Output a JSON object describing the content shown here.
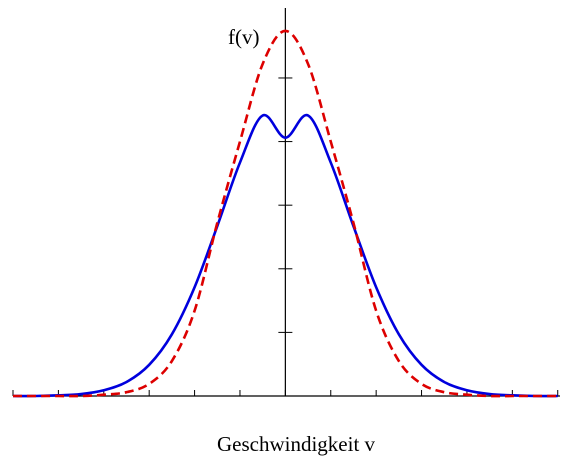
{
  "chart_data": {
    "type": "line",
    "xlabel": "Geschwindigkeit v",
    "ylabel": "f(v)",
    "x_ticks": {
      "min": -6,
      "max": 6,
      "step": 1,
      "labels_shown": false
    },
    "y_ticks": {
      "min": 0,
      "max": 5,
      "step": 1,
      "labels_shown": false
    },
    "xlim": [
      -6,
      6.05
    ],
    "ylim": [
      0,
      6.1
    ],
    "series": [
      {
        "style": "solid",
        "color": "#0000dd",
        "points": [
          [
            -6,
            0.0
          ],
          [
            -5.5,
            0.0
          ],
          [
            -5,
            0.01
          ],
          [
            -4.5,
            0.03
          ],
          [
            -4,
            0.09
          ],
          [
            -3.5,
            0.22
          ],
          [
            -3,
            0.49
          ],
          [
            -2.5,
            0.97
          ],
          [
            -2,
            1.71
          ],
          [
            -1.5,
            2.67
          ],
          [
            -1,
            3.67
          ],
          [
            -0.5,
            4.41
          ],
          [
            0,
            4.06
          ],
          [
            0.5,
            4.41
          ],
          [
            1,
            3.67
          ],
          [
            1.5,
            2.67
          ],
          [
            2,
            1.71
          ],
          [
            2.5,
            0.97
          ],
          [
            3,
            0.49
          ],
          [
            3.5,
            0.22
          ],
          [
            4,
            0.09
          ],
          [
            4.5,
            0.03
          ],
          [
            5,
            0.01
          ],
          [
            5.5,
            0.0
          ],
          [
            6,
            0.0
          ]
        ]
      },
      {
        "style": "dashed",
        "color": "#dd0000",
        "points": [
          [
            -6,
            0.0
          ],
          [
            -5,
            0.0
          ],
          [
            -4.5,
            0.0
          ],
          [
            -4,
            0.02
          ],
          [
            -3.5,
            0.06
          ],
          [
            -3,
            0.19
          ],
          [
            -2.5,
            0.55
          ],
          [
            -2,
            1.34
          ],
          [
            -1.5,
            2.72
          ],
          [
            -1,
            4.0
          ],
          [
            -0.5,
            5.22
          ],
          [
            0,
            5.74
          ],
          [
            0.5,
            5.22
          ],
          [
            1,
            4.0
          ],
          [
            1.5,
            2.72
          ],
          [
            2,
            1.34
          ],
          [
            2.5,
            0.55
          ],
          [
            3,
            0.19
          ],
          [
            3.5,
            0.06
          ],
          [
            4,
            0.02
          ],
          [
            4.5,
            0.0
          ],
          [
            5,
            0.0
          ],
          [
            6,
            0.0
          ]
        ]
      }
    ]
  }
}
